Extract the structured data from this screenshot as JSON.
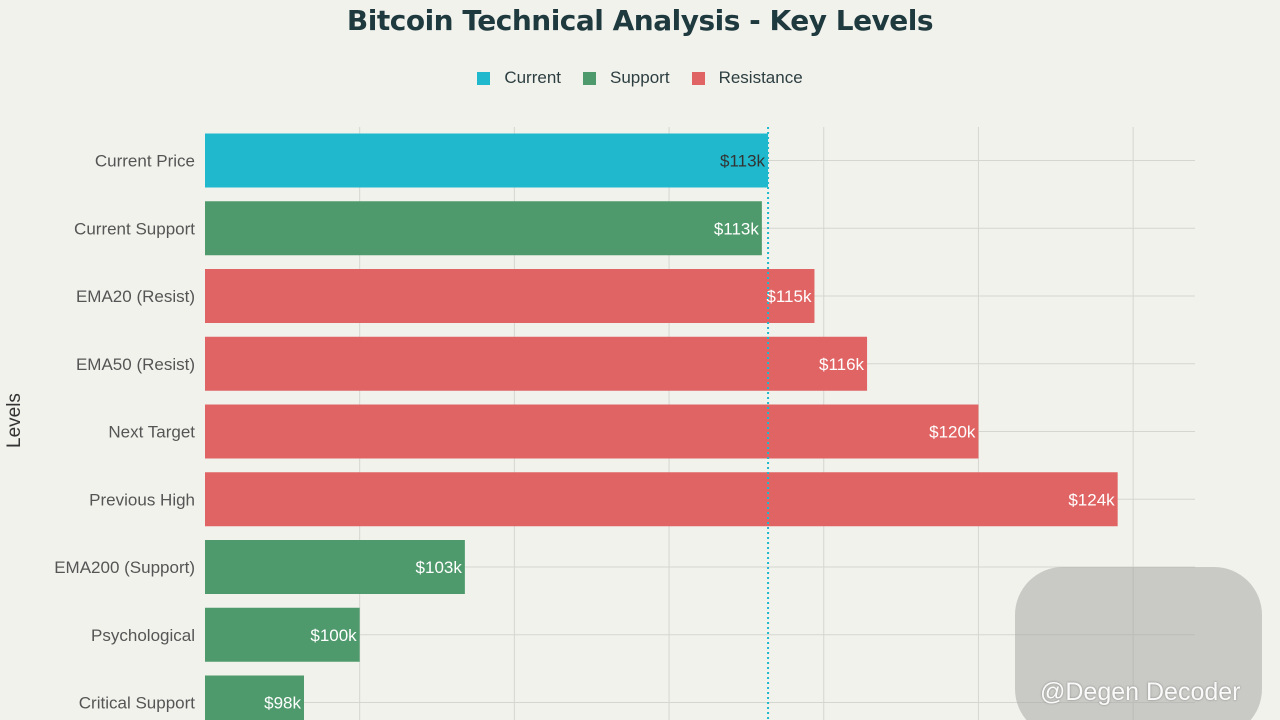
{
  "chart_data": {
    "type": "bar",
    "orientation": "horizontal",
    "title": "Bitcoin Technical Analysis - Key Levels",
    "ylabel": "Levels",
    "xlabel": "",
    "xlim": [
      95,
      127
    ],
    "legend": {
      "placement": "top-center",
      "entries": [
        {
          "name": "Current",
          "color": "#1fb8cd"
        },
        {
          "name": "Support",
          "color": "#4f9a6c"
        },
        {
          "name": "Resistance",
          "color": "#e06464"
        }
      ]
    },
    "reference_line": {
      "value": 113.2,
      "color": "#1fb8cd",
      "style": "dotted"
    },
    "bars": [
      {
        "category": "Current Price",
        "value": 113.2,
        "label": "$113k",
        "group": "Current",
        "color": "#1fb8cd",
        "label_color": "#333333"
      },
      {
        "category": "Current Support",
        "value": 113,
        "label": "$113k",
        "group": "Support",
        "color": "#4f9a6c",
        "label_color": "#ffffff"
      },
      {
        "category": "EMA20 (Resist)",
        "value": 114.7,
        "label": "$115k",
        "group": "Resistance",
        "color": "#e06464",
        "label_color": "#ffffff"
      },
      {
        "category": "EMA50 (Resist)",
        "value": 116.4,
        "label": "$116k",
        "group": "Resistance",
        "color": "#e06464",
        "label_color": "#ffffff"
      },
      {
        "category": "Next Target",
        "value": 120,
        "label": "$120k",
        "group": "Resistance",
        "color": "#e06464",
        "label_color": "#ffffff"
      },
      {
        "category": "Previous High",
        "value": 124.5,
        "label": "$124k",
        "group": "Resistance",
        "color": "#e06464",
        "label_color": "#ffffff"
      },
      {
        "category": "EMA200 (Support)",
        "value": 103.4,
        "label": "$103k",
        "group": "Support",
        "color": "#4f9a6c",
        "label_color": "#ffffff"
      },
      {
        "category": "Psychological",
        "value": 100,
        "label": "$100k",
        "group": "Support",
        "color": "#4f9a6c",
        "label_color": "#ffffff"
      },
      {
        "category": "Critical Support",
        "value": 98.2,
        "label": "$98k",
        "group": "Support",
        "color": "#4f9a6c",
        "label_color": "#ffffff"
      }
    ],
    "gridlines": [
      100,
      105,
      110,
      115,
      120,
      125
    ]
  },
  "watermark": {
    "text": "@Degen Decoder"
  }
}
